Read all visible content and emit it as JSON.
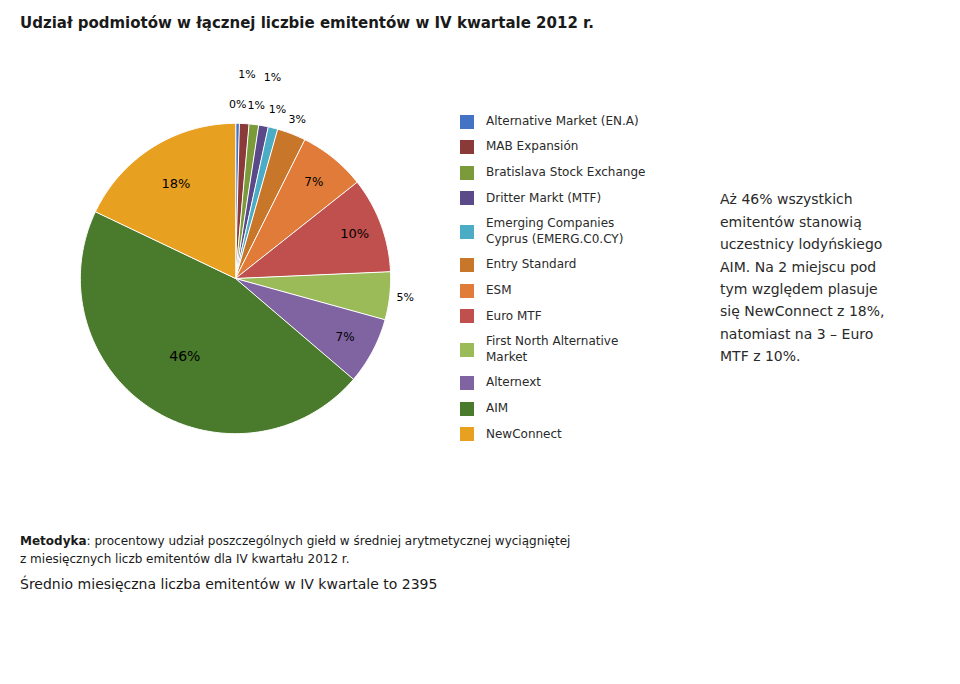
{
  "chart_data": {
    "type": "pie",
    "title": "Udział podmiotów w łącznej liczbie emitentów w IV kwartale 2012 r.",
    "categories": [
      "Alternative Market (EN.A)",
      "MAB Expansión",
      "Bratislava Stock Exchange",
      "Dritter Markt (MTF)",
      "Emerging Companies\nCyprus (EMERG.C0.CY)",
      "Entry Standard",
      "ESM",
      "Euro MTF",
      "First North Alternative\nMarket",
      "Alternext",
      "AIM",
      "NewConnect"
    ],
    "values": [
      0.4,
      1.0,
      1.0,
      1.0,
      1.0,
      3.0,
      7.0,
      10.0,
      5.0,
      7.0,
      46.0,
      18.0
    ],
    "value_labels": [
      "0%",
      "1%",
      "1%",
      "1%",
      "1%",
      "3%",
      "7%",
      "10%",
      "5%",
      "7%",
      "46%",
      "18%"
    ],
    "colors": [
      "#4472C4",
      "#8B3A3A",
      "#7B9B3A",
      "#5B4A8A",
      "#4BACC6",
      "#C8762A",
      "#E07B39",
      "#C0504D",
      "#9BBB59",
      "#8064A2",
      "#4A7A2B",
      "#E8A020"
    ],
    "data_labels": true,
    "legend": "right",
    "annotations": [
      "Aż 46% wszystkich\nemitentów stanowią\nuczestnicy lodyńskiego\nAIM. Na 2 miejscu pod\ntym względem plasuje\nsię NewConnect z 18%,\nnatomiast na 3 – Euro\nMTF z 10%."
    ],
    "footnote_bold": "Metodyka",
    "footnote": ": procentowy udział poszczególnych giełd w średniej arytmetycznej wyciągniętej\nz miesięcznych liczb emitentów dla IV kwartału 2012 r.",
    "caption": "Średnio miesięczna liczba emitentów w IV kwartale to 2395"
  }
}
